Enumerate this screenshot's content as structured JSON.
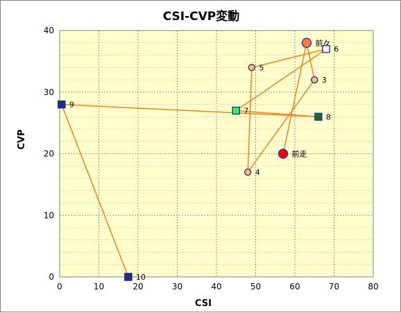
{
  "chart_data": {
    "type": "scatter",
    "title": "CSI-CVP変動",
    "xlabel": "CSI",
    "ylabel": "CVP",
    "xlim": [
      0,
      80
    ],
    "ylim": [
      0,
      40
    ],
    "x_ticks": [
      0,
      10,
      20,
      30,
      40,
      50,
      60,
      70,
      80
    ],
    "y_ticks": [
      0,
      10,
      20,
      30,
      40
    ],
    "grid": true,
    "background_color": "#ffffcc",
    "line_color": "#ff7f1a",
    "points": [
      {
        "label": "前走",
        "x": 57,
        "y": 20,
        "shape": "circle",
        "fill": "#ff0000",
        "stroke": "#3333cc",
        "size": "large"
      },
      {
        "label": "前々",
        "x": 63,
        "y": 38,
        "shape": "circle",
        "fill": "#ff7f32",
        "stroke": "#3333cc",
        "size": "large"
      },
      {
        "label": "3",
        "x": 65,
        "y": 32,
        "shape": "circle",
        "fill": "#ffcc33",
        "stroke": "#3333cc",
        "size": "small"
      },
      {
        "label": "4",
        "x": 48,
        "y": 17,
        "shape": "circle",
        "fill": "#ffcc33",
        "stroke": "#3333cc",
        "size": "small"
      },
      {
        "label": "5",
        "x": 49,
        "y": 34,
        "shape": "circle",
        "fill": "#ffcc33",
        "stroke": "#3333cc",
        "size": "small"
      },
      {
        "label": "6",
        "x": 68,
        "y": 37,
        "shape": "square",
        "fill": "#ffffff",
        "stroke": "#1a3cb4",
        "size": "small"
      },
      {
        "label": "7",
        "x": 45,
        "y": 27,
        "shape": "square",
        "fill": "#33ff33",
        "stroke": "#1a3cb4",
        "size": "small"
      },
      {
        "label": "8",
        "x": 66,
        "y": 26,
        "shape": "square",
        "fill": "#1a6e1a",
        "stroke": "#1a3cb4",
        "size": "small"
      },
      {
        "label": "9",
        "x": 0.5,
        "y": 28,
        "shape": "square",
        "fill": "#1a2f8c",
        "stroke": "#1a2f8c",
        "size": "small"
      },
      {
        "label": "10",
        "x": 17.5,
        "y": 0,
        "shape": "square",
        "fill": "#1a2f8c",
        "stroke": "#1a2f8c",
        "size": "small"
      }
    ]
  }
}
